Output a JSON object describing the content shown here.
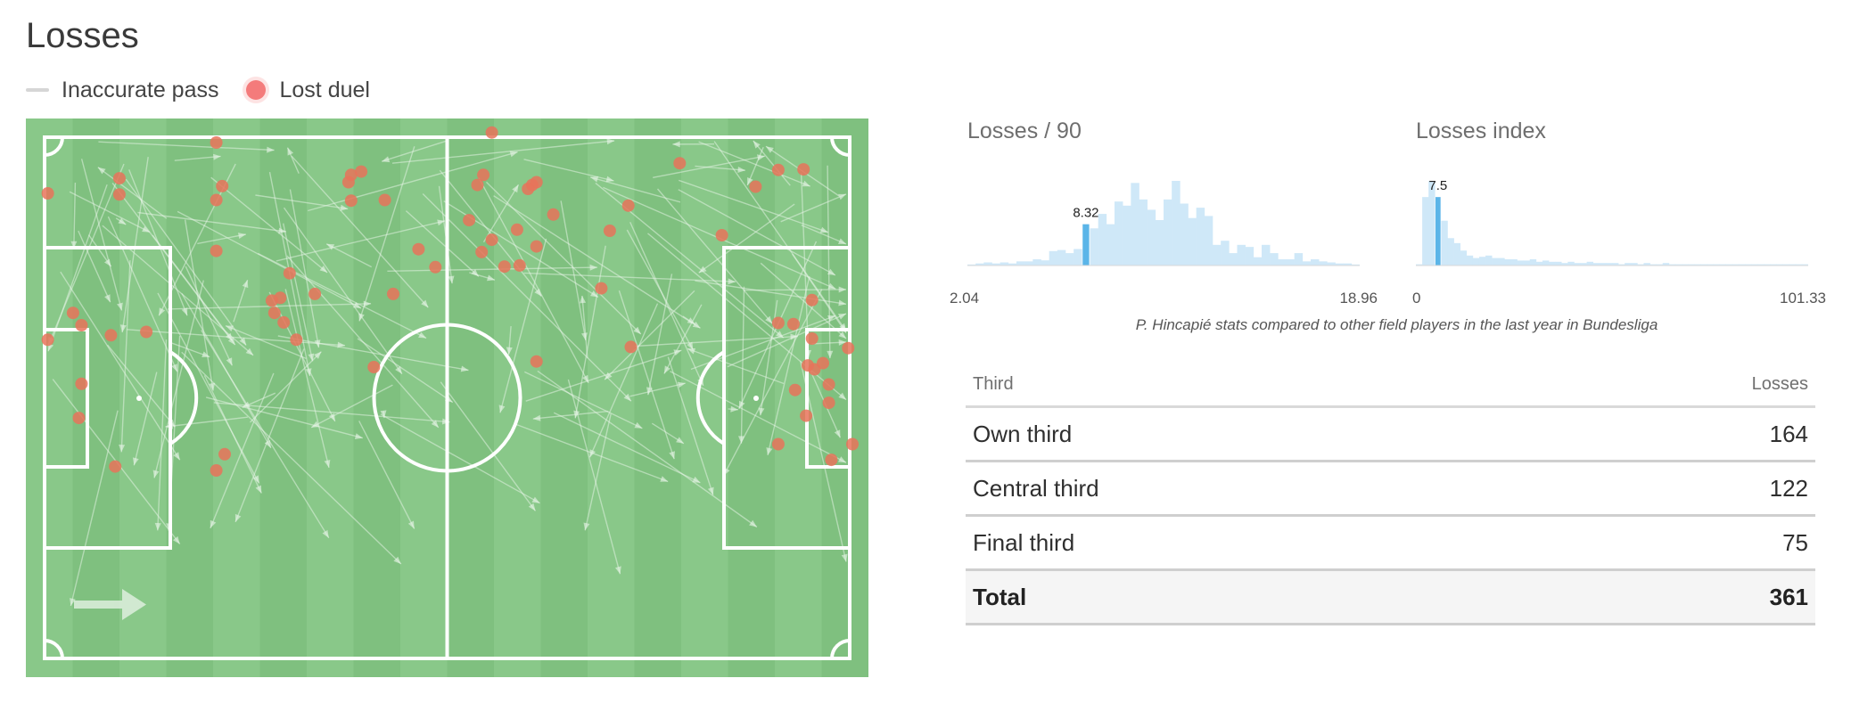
{
  "title": "Losses",
  "legend": [
    {
      "label": "Inaccurate pass",
      "type": "line",
      "color": "#d6d6d6"
    },
    {
      "label": "Lost duel",
      "type": "dot",
      "color": "#f47b7b"
    }
  ],
  "pitch": {
    "grass_light": "#89c889",
    "grass_dark": "#7fc07f",
    "line_color": "#ffffff",
    "duel_color": "#e8735a",
    "arrow_color": "#eaf5ea"
  },
  "chart_data": [
    {
      "type": "scatter",
      "name": "Lost duels",
      "coordinate_units": "pitch percent (x 0-100 left to right, y 0-100 top to bottom)",
      "points": [
        [
          2.6,
          13.4
        ],
        [
          2.6,
          39.6
        ],
        [
          5.6,
          34.8
        ],
        [
          6.6,
          37
        ],
        [
          6.6,
          47.5
        ],
        [
          6.3,
          53.6
        ],
        [
          10.1,
          38.8
        ],
        [
          10.6,
          62.3
        ],
        [
          11.1,
          10.7
        ],
        [
          11.1,
          13.6
        ],
        [
          14.3,
          38.2
        ],
        [
          22.6,
          4.3
        ],
        [
          22.6,
          14.6
        ],
        [
          23.3,
          12.1
        ],
        [
          22.6,
          23.7
        ],
        [
          23.6,
          60.1
        ],
        [
          22.6,
          63
        ],
        [
          31.3,
          27.7
        ],
        [
          30.2,
          32.1
        ],
        [
          29.5,
          34.8
        ],
        [
          29.2,
          32.6
        ],
        [
          30.6,
          36.5
        ],
        [
          32.1,
          39.6
        ],
        [
          34.3,
          31.4
        ],
        [
          38.6,
          10.1
        ],
        [
          38.3,
          11.4
        ],
        [
          39.8,
          9.5
        ],
        [
          38.6,
          14.7
        ],
        [
          42.6,
          14.6
        ],
        [
          43.6,
          31.4
        ],
        [
          41.3,
          44.5
        ],
        [
          46.6,
          23.4
        ],
        [
          48.6,
          26.6
        ],
        [
          55.3,
          2.5
        ],
        [
          54.3,
          10.1
        ],
        [
          53.6,
          11.9
        ],
        [
          52.6,
          18.2
        ],
        [
          54.1,
          23.9
        ],
        [
          55.3,
          21.7
        ],
        [
          56.8,
          26.5
        ],
        [
          58.6,
          26.3
        ],
        [
          60.6,
          22.9
        ],
        [
          58.3,
          19.9
        ],
        [
          60.1,
          11.9
        ],
        [
          60.6,
          11.4
        ],
        [
          59.6,
          12.6
        ],
        [
          62.6,
          17.2
        ],
        [
          60.6,
          43.5
        ],
        [
          69.3,
          20.1
        ],
        [
          68.3,
          30.4
        ],
        [
          71.5,
          15.6
        ],
        [
          71.8,
          40.9
        ],
        [
          77.6,
          8
        ],
        [
          82.6,
          20.9
        ],
        [
          86.6,
          12.2
        ],
        [
          89.3,
          9.2
        ],
        [
          92.3,
          9.1
        ],
        [
          89.3,
          36.6
        ],
        [
          91.1,
          36.8
        ],
        [
          93.3,
          32.5
        ],
        [
          93.3,
          39.4
        ],
        [
          95.3,
          47.6
        ],
        [
          91.3,
          48.6
        ],
        [
          92.8,
          44.2
        ],
        [
          93.6,
          44.9
        ],
        [
          92.6,
          53.2
        ],
        [
          94.6,
          43.8
        ],
        [
          97.6,
          41.1
        ],
        [
          95.3,
          50.9
        ],
        [
          89.3,
          58.3
        ],
        [
          95.6,
          61.1
        ],
        [
          98.1,
          58.3
        ]
      ]
    },
    {
      "type": "bar",
      "title": "Losses / 90",
      "min_label": "2.04",
      "max_label": "18.96",
      "highlight_label": "8.32",
      "highlight_index": 14,
      "values": [
        1,
        2,
        3,
        2,
        3,
        2,
        4,
        4,
        6,
        5,
        14,
        15,
        12,
        16,
        40,
        36,
        50,
        40,
        62,
        58,
        80,
        64,
        54,
        44,
        64,
        82,
        60,
        46,
        56,
        48,
        20,
        24,
        12,
        20,
        18,
        8,
        20,
        12,
        6,
        6,
        12,
        4,
        6,
        4,
        3,
        2,
        2,
        1
      ]
    },
    {
      "type": "bar",
      "title": "Losses index",
      "min_label": "0",
      "max_label": "101.33",
      "highlight_label": "7.5",
      "highlight_index": 3,
      "values": [
        1,
        55,
        68,
        55,
        36,
        22,
        18,
        12,
        8,
        6,
        7,
        8,
        6,
        6,
        5,
        5,
        4,
        4,
        5,
        3,
        4,
        3,
        3,
        2,
        3,
        2,
        2,
        3,
        2,
        2,
        2,
        2,
        1,
        2,
        2,
        1,
        2,
        1,
        1,
        2,
        1,
        1,
        1,
        1,
        1,
        1,
        1,
        1,
        1,
        1,
        1,
        1,
        1,
        1,
        1,
        1,
        1,
        1,
        1,
        1,
        1,
        1
      ]
    }
  ],
  "histograms": {
    "colors": {
      "bar": "#cfe8f8",
      "highlight": "#5bb5e8",
      "label": "#222222"
    }
  },
  "caption": "P. Hincapié stats compared to other field players in the last year in Bundesliga",
  "table": {
    "headers": [
      "Third",
      "Losses"
    ],
    "rows": [
      {
        "label": "Own third",
        "value": "164"
      },
      {
        "label": "Central third",
        "value": "122"
      },
      {
        "label": "Final third",
        "value": "75"
      }
    ],
    "total": {
      "label": "Total",
      "value": "361"
    }
  }
}
